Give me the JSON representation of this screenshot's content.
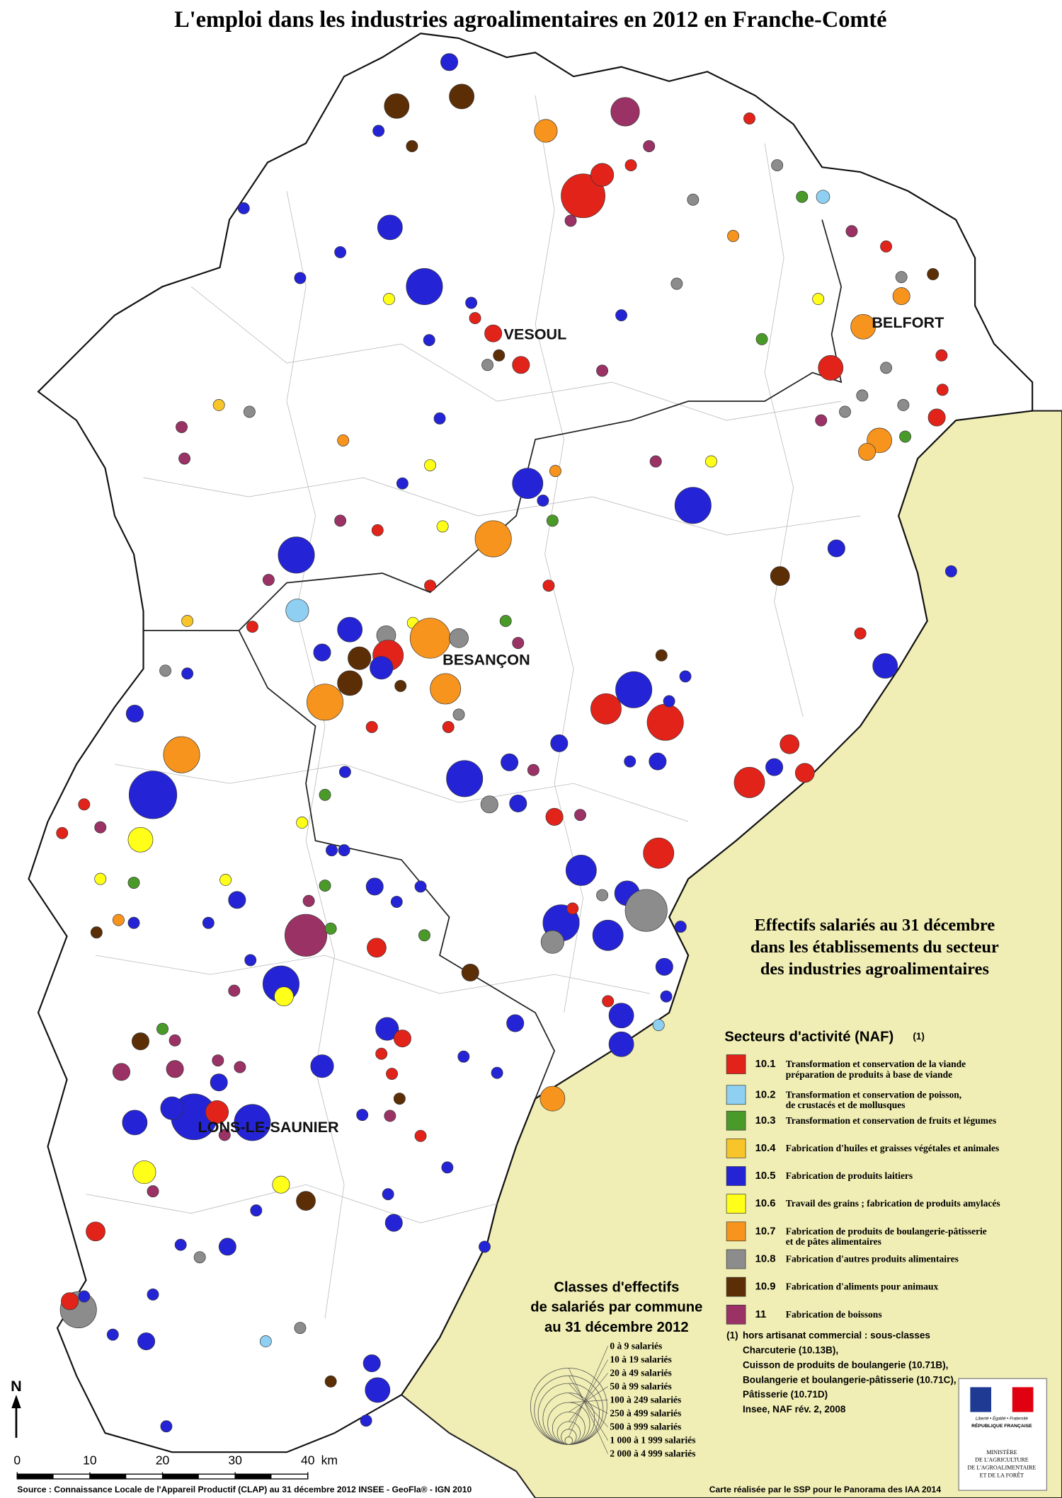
{
  "title": "L'emploi dans les industries agroalimentaires en 2012 en Franche-Comté",
  "cities": [
    "VESOUL",
    "BELFORT",
    "BESANÇON",
    "LONS-LE-SAUNIER"
  ],
  "legend": {
    "title": [
      "Effectifs salariés au 31 décembre",
      "dans les établissements du secteur",
      "des industries agroalimentaires"
    ],
    "sectors_title": "Secteurs d'activité (NAF)",
    "note_marker": "(1)",
    "sectors": [
      {
        "code": "10.1",
        "lines": [
          "Transformation et conservation de la viande",
          "préparation de produits à base de viande"
        ],
        "color": "#e2231a"
      },
      {
        "code": "10.2",
        "lines": [
          "Transformation et conservation de poisson,",
          "de crustacés et de mollusques"
        ],
        "color": "#8ecff2"
      },
      {
        "code": "10.3",
        "lines": [
          "Transformation et conservation de fruits et légumes"
        ],
        "color": "#4a9a2a"
      },
      {
        "code": "10.4",
        "lines": [
          "Fabrication d'huiles et graisses végétales et animales"
        ],
        "color": "#f7c52a"
      },
      {
        "code": "10.5",
        "lines": [
          "Fabrication de produits laitiers"
        ],
        "color": "#2424d6"
      },
      {
        "code": "10.6",
        "lines": [
          "Travail des grains ; fabrication de produits amylacés"
        ],
        "color": "#ffff19"
      },
      {
        "code": "10.7",
        "lines": [
          "Fabrication de produits de boulangerie-pâtisserie",
          "et de pâtes alimentaires"
        ],
        "color": "#f7941d"
      },
      {
        "code": "10.8",
        "lines": [
          "Fabrication d'autres produits alimentaires"
        ],
        "color": "#8c8c8c"
      },
      {
        "code": "10.9",
        "lines": [
          "Fabrication d'aliments pour animaux"
        ],
        "color": "#5c2e06"
      },
      {
        "code": "11",
        "lines": [
          "Fabrication de boissons"
        ],
        "color": "#9b3265"
      }
    ],
    "note": [
      "hors artisanat commercial : sous-classes",
      "Charcuterie (10.13B),",
      "Cuisson de produits de boulangerie (10.71B),",
      "Boulangerie et boulangerie-pâtisserie (10.71C),",
      "Pâtisserie (10.71D)",
      "Insee, NAF rév. 2, 2008"
    ],
    "size_title": [
      "Classes d'effectifs",
      "de salariés par commune",
      "au 31 décembre 2012"
    ],
    "size_classes": [
      "0 à 9 salariés",
      "10 à 19 salariés",
      "20 à 49 salariés",
      "50 à 99 salariés",
      "100 à 249 salariés",
      "250 à 499 salariés",
      "500 à 999 salariés",
      "1 000 à 1 999 salariés",
      "2 000 à 4 999 salariés"
    ]
  },
  "scale": {
    "ticks": [
      0,
      10,
      20,
      30,
      40
    ],
    "unit": "km"
  },
  "north": "N",
  "source": "Source : Connaissance Locale de l'Appareil Productif (CLAP) au 31 décembre 2012  INSEE - GeoFla® - IGN 2010",
  "credit": "Carte réalisée par le SSP pour le Panorama des IAA 2014",
  "logo": [
    "Liberté • Égalité • Fraternité",
    "RÉPUBLIQUE FRANÇAISE",
    "MINISTÈRE",
    "DE L'AGRICULTURE",
    "DE L'AGROALIMENTAIRE",
    "ET DE LA FORÊT"
  ]
}
